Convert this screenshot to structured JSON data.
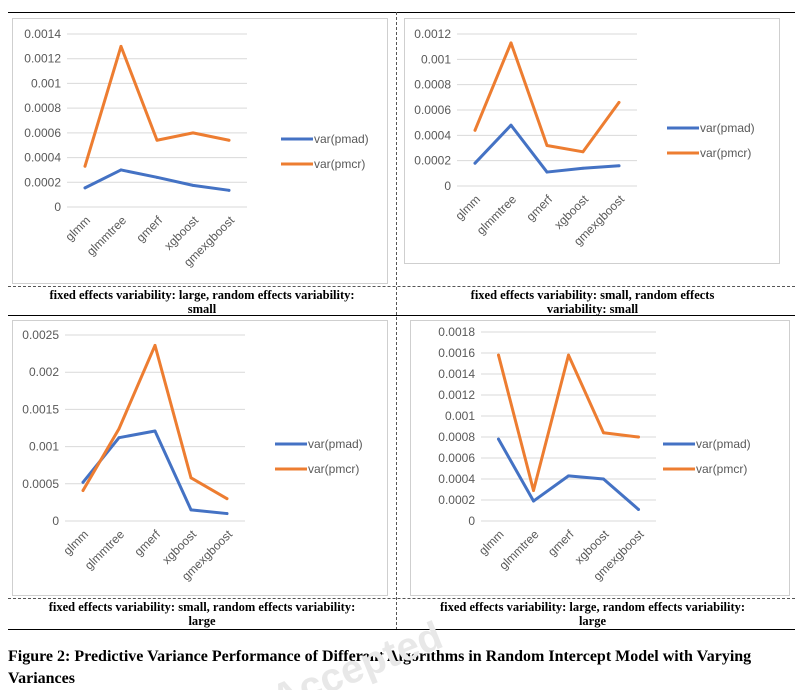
{
  "colors": {
    "pmad": "#4472C4",
    "pmcr": "#ED7D31",
    "grid": "#d9d9d9",
    "axis_text": "#595959"
  },
  "watermark_text": "Accepted",
  "figure_caption": "Figure 2: Predictive Variance Performance of Different Algorithms in Random Intercept Model with Varying Variances",
  "chart_data": [
    {
      "type": "line",
      "categories": [
        "glmm",
        "glmmtree",
        "gmerf",
        "xgboost",
        "gmexgboost"
      ],
      "yticks": [
        "0",
        "0.0002",
        "0.0004",
        "0.0006",
        "0.0008",
        "0.001",
        "0.0012",
        "0.0014"
      ],
      "ylim": [
        0,
        0.0014
      ],
      "series": [
        {
          "name": "var(pmad)",
          "values": [
            0.000155,
            0.0003,
            0.00024,
            0.000175,
            0.000135
          ]
        },
        {
          "name": "var(pmcr)",
          "values": [
            0.00033,
            0.0013,
            0.00054,
            0.0006,
            0.00054
          ]
        }
      ],
      "caption_line1": "fixed effects variability: large, random effects variability:",
      "caption_line2": "small"
    },
    {
      "type": "line",
      "categories": [
        "glmm",
        "glmmtree",
        "gmerf",
        "xgboost",
        "gmexgboost"
      ],
      "yticks": [
        "0",
        "0.0002",
        "0.0004",
        "0.0006",
        "0.0008",
        "0.001",
        "0.0012"
      ],
      "ylim": [
        0,
        0.0012
      ],
      "series": [
        {
          "name": "var(pmad)",
          "values": [
            0.00018,
            0.00048,
            0.00011,
            0.00014,
            0.00016
          ]
        },
        {
          "name": "var(pmcr)",
          "values": [
            0.00044,
            0.00113,
            0.00032,
            0.00027,
            0.00066
          ]
        }
      ],
      "caption_line1": "fixed effects variability: small, random effects",
      "caption_line2": "variability: small"
    },
    {
      "type": "line",
      "categories": [
        "glmm",
        "glmmtree",
        "gmerf",
        "xgboost",
        "gmexgboost"
      ],
      "yticks": [
        "0",
        "0.0005",
        "0.001",
        "0.0015",
        "0.002",
        "0.0025"
      ],
      "ylim": [
        0,
        0.0025
      ],
      "series": [
        {
          "name": "var(pmad)",
          "values": [
            0.00052,
            0.00112,
            0.00121,
            0.00015,
            0.0001
          ]
        },
        {
          "name": "var(pmcr)",
          "values": [
            0.00041,
            0.00124,
            0.00236,
            0.00058,
            0.0003
          ]
        }
      ],
      "caption_line1": "fixed effects variability: small, random effects variability:",
      "caption_line2": "large"
    },
    {
      "type": "line",
      "categories": [
        "glmm",
        "glmmtree",
        "gmerf",
        "xgboost",
        "gmexgboost"
      ],
      "yticks": [
        "0",
        "0.0002",
        "0.0004",
        "0.0006",
        "0.0008",
        "0.001",
        "0.0012",
        "0.0014",
        "0.0016",
        "0.0018"
      ],
      "ylim": [
        0,
        0.0018
      ],
      "series": [
        {
          "name": "var(pmad)",
          "values": [
            0.00078,
            0.00019,
            0.00043,
            0.0004,
            0.00011
          ]
        },
        {
          "name": "var(pmcr)",
          "values": [
            0.00158,
            0.00029,
            0.00158,
            0.00084,
            0.0008
          ]
        }
      ],
      "caption_line1": "fixed effects variability: large, random effects variability:",
      "caption_line2": "large"
    }
  ]
}
